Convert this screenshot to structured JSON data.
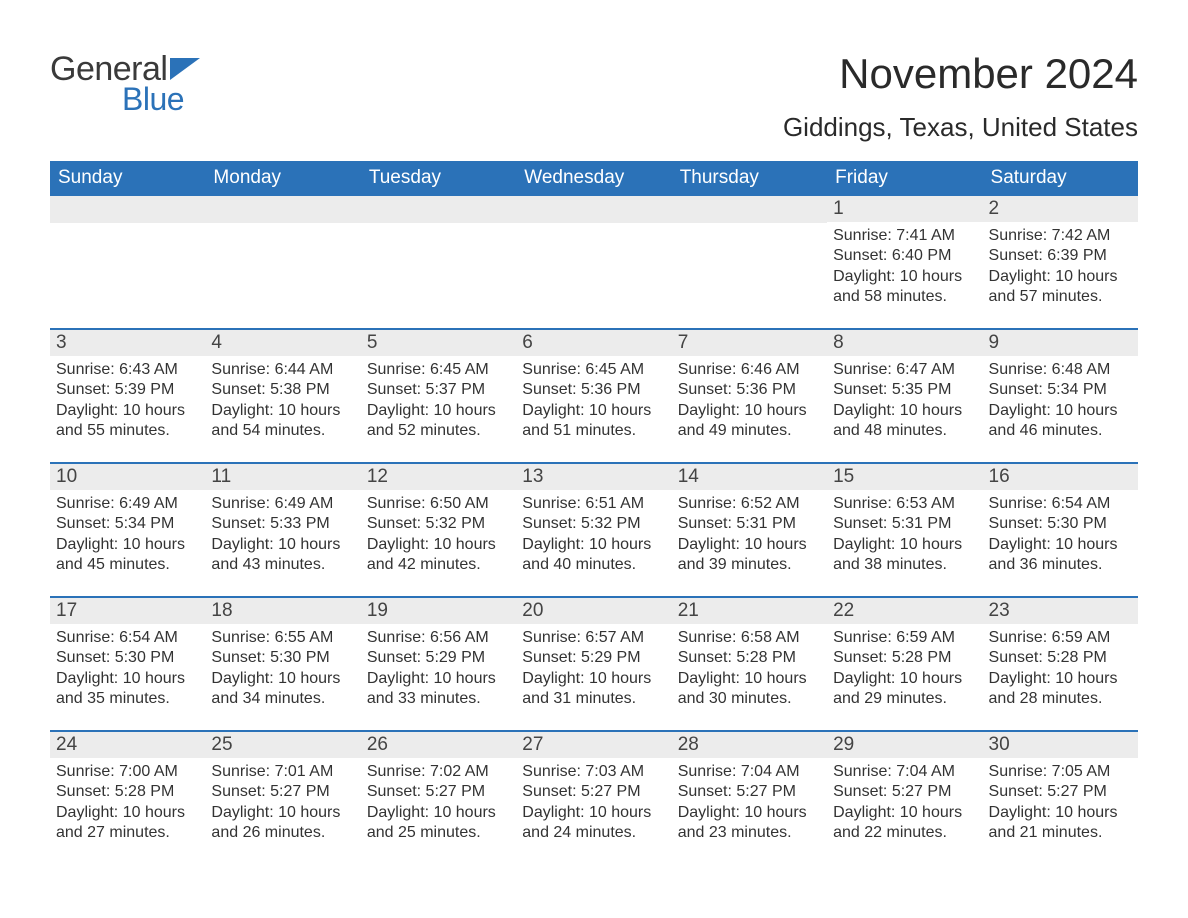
{
  "logo": {
    "word1": "General",
    "word2": "Blue",
    "accent_color": "#2b72b8",
    "text_color": "#3a3a3a"
  },
  "title": "November 2024",
  "location": "Giddings, Texas, United States",
  "colors": {
    "header_bg": "#2b72b8",
    "header_text": "#ffffff",
    "daynum_bg": "#ececec",
    "body_text": "#333333",
    "page_bg": "#ffffff"
  },
  "days_of_week": [
    "Sunday",
    "Monday",
    "Tuesday",
    "Wednesday",
    "Thursday",
    "Friday",
    "Saturday"
  ],
  "weeks": [
    [
      {
        "empty": true
      },
      {
        "empty": true
      },
      {
        "empty": true
      },
      {
        "empty": true
      },
      {
        "empty": true
      },
      {
        "num": "1",
        "sunrise": "Sunrise: 7:41 AM",
        "sunset": "Sunset: 6:40 PM",
        "day1": "Daylight: 10 hours",
        "day2": "and 58 minutes."
      },
      {
        "num": "2",
        "sunrise": "Sunrise: 7:42 AM",
        "sunset": "Sunset: 6:39 PM",
        "day1": "Daylight: 10 hours",
        "day2": "and 57 minutes."
      }
    ],
    [
      {
        "num": "3",
        "sunrise": "Sunrise: 6:43 AM",
        "sunset": "Sunset: 5:39 PM",
        "day1": "Daylight: 10 hours",
        "day2": "and 55 minutes."
      },
      {
        "num": "4",
        "sunrise": "Sunrise: 6:44 AM",
        "sunset": "Sunset: 5:38 PM",
        "day1": "Daylight: 10 hours",
        "day2": "and 54 minutes."
      },
      {
        "num": "5",
        "sunrise": "Sunrise: 6:45 AM",
        "sunset": "Sunset: 5:37 PM",
        "day1": "Daylight: 10 hours",
        "day2": "and 52 minutes."
      },
      {
        "num": "6",
        "sunrise": "Sunrise: 6:45 AM",
        "sunset": "Sunset: 5:36 PM",
        "day1": "Daylight: 10 hours",
        "day2": "and 51 minutes."
      },
      {
        "num": "7",
        "sunrise": "Sunrise: 6:46 AM",
        "sunset": "Sunset: 5:36 PM",
        "day1": "Daylight: 10 hours",
        "day2": "and 49 minutes."
      },
      {
        "num": "8",
        "sunrise": "Sunrise: 6:47 AM",
        "sunset": "Sunset: 5:35 PM",
        "day1": "Daylight: 10 hours",
        "day2": "and 48 minutes."
      },
      {
        "num": "9",
        "sunrise": "Sunrise: 6:48 AM",
        "sunset": "Sunset: 5:34 PM",
        "day1": "Daylight: 10 hours",
        "day2": "and 46 minutes."
      }
    ],
    [
      {
        "num": "10",
        "sunrise": "Sunrise: 6:49 AM",
        "sunset": "Sunset: 5:34 PM",
        "day1": "Daylight: 10 hours",
        "day2": "and 45 minutes."
      },
      {
        "num": "11",
        "sunrise": "Sunrise: 6:49 AM",
        "sunset": "Sunset: 5:33 PM",
        "day1": "Daylight: 10 hours",
        "day2": "and 43 minutes."
      },
      {
        "num": "12",
        "sunrise": "Sunrise: 6:50 AM",
        "sunset": "Sunset: 5:32 PM",
        "day1": "Daylight: 10 hours",
        "day2": "and 42 minutes."
      },
      {
        "num": "13",
        "sunrise": "Sunrise: 6:51 AM",
        "sunset": "Sunset: 5:32 PM",
        "day1": "Daylight: 10 hours",
        "day2": "and 40 minutes."
      },
      {
        "num": "14",
        "sunrise": "Sunrise: 6:52 AM",
        "sunset": "Sunset: 5:31 PM",
        "day1": "Daylight: 10 hours",
        "day2": "and 39 minutes."
      },
      {
        "num": "15",
        "sunrise": "Sunrise: 6:53 AM",
        "sunset": "Sunset: 5:31 PM",
        "day1": "Daylight: 10 hours",
        "day2": "and 38 minutes."
      },
      {
        "num": "16",
        "sunrise": "Sunrise: 6:54 AM",
        "sunset": "Sunset: 5:30 PM",
        "day1": "Daylight: 10 hours",
        "day2": "and 36 minutes."
      }
    ],
    [
      {
        "num": "17",
        "sunrise": "Sunrise: 6:54 AM",
        "sunset": "Sunset: 5:30 PM",
        "day1": "Daylight: 10 hours",
        "day2": "and 35 minutes."
      },
      {
        "num": "18",
        "sunrise": "Sunrise: 6:55 AM",
        "sunset": "Sunset: 5:30 PM",
        "day1": "Daylight: 10 hours",
        "day2": "and 34 minutes."
      },
      {
        "num": "19",
        "sunrise": "Sunrise: 6:56 AM",
        "sunset": "Sunset: 5:29 PM",
        "day1": "Daylight: 10 hours",
        "day2": "and 33 minutes."
      },
      {
        "num": "20",
        "sunrise": "Sunrise: 6:57 AM",
        "sunset": "Sunset: 5:29 PM",
        "day1": "Daylight: 10 hours",
        "day2": "and 31 minutes."
      },
      {
        "num": "21",
        "sunrise": "Sunrise: 6:58 AM",
        "sunset": "Sunset: 5:28 PM",
        "day1": "Daylight: 10 hours",
        "day2": "and 30 minutes."
      },
      {
        "num": "22",
        "sunrise": "Sunrise: 6:59 AM",
        "sunset": "Sunset: 5:28 PM",
        "day1": "Daylight: 10 hours",
        "day2": "and 29 minutes."
      },
      {
        "num": "23",
        "sunrise": "Sunrise: 6:59 AM",
        "sunset": "Sunset: 5:28 PM",
        "day1": "Daylight: 10 hours",
        "day2": "and 28 minutes."
      }
    ],
    [
      {
        "num": "24",
        "sunrise": "Sunrise: 7:00 AM",
        "sunset": "Sunset: 5:28 PM",
        "day1": "Daylight: 10 hours",
        "day2": "and 27 minutes."
      },
      {
        "num": "25",
        "sunrise": "Sunrise: 7:01 AM",
        "sunset": "Sunset: 5:27 PM",
        "day1": "Daylight: 10 hours",
        "day2": "and 26 minutes."
      },
      {
        "num": "26",
        "sunrise": "Sunrise: 7:02 AM",
        "sunset": "Sunset: 5:27 PM",
        "day1": "Daylight: 10 hours",
        "day2": "and 25 minutes."
      },
      {
        "num": "27",
        "sunrise": "Sunrise: 7:03 AM",
        "sunset": "Sunset: 5:27 PM",
        "day1": "Daylight: 10 hours",
        "day2": "and 24 minutes."
      },
      {
        "num": "28",
        "sunrise": "Sunrise: 7:04 AM",
        "sunset": "Sunset: 5:27 PM",
        "day1": "Daylight: 10 hours",
        "day2": "and 23 minutes."
      },
      {
        "num": "29",
        "sunrise": "Sunrise: 7:04 AM",
        "sunset": "Sunset: 5:27 PM",
        "day1": "Daylight: 10 hours",
        "day2": "and 22 minutes."
      },
      {
        "num": "30",
        "sunrise": "Sunrise: 7:05 AM",
        "sunset": "Sunset: 5:27 PM",
        "day1": "Daylight: 10 hours",
        "day2": "and 21 minutes."
      }
    ]
  ]
}
